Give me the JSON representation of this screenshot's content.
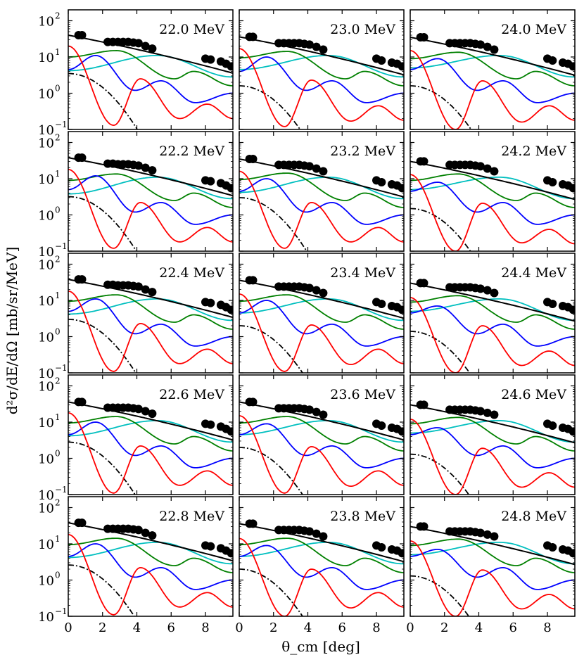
{
  "figure": {
    "ylabel": "d²σ/dE/dΩ [mb/sr/MeV]",
    "xlabel": "θ_cm [deg]"
  },
  "chart_data": {
    "type": "line",
    "layout": "5 rows × 3 columns, shared axes",
    "xlim": [
      0,
      9.6
    ],
    "ylim": [
      0.1,
      200
    ],
    "yscale": "log",
    "x_ticks": [
      0,
      2,
      4,
      6,
      8
    ],
    "x_tick_labels": [
      "0",
      "2",
      "4",
      "6",
      "8"
    ],
    "y_ticks": [
      0.1,
      1,
      10,
      100
    ],
    "y_tick_labels": [
      "10",
      "10",
      "10",
      "10"
    ],
    "y_tick_exponents": [
      "−1",
      "0",
      "1",
      "2"
    ],
    "grid": false,
    "series_styles": [
      {
        "key": "total",
        "color": "#000000",
        "dash": "solid"
      },
      {
        "key": "dipole",
        "color": "#ff0000",
        "dash": "solid"
      },
      {
        "key": "l2",
        "color": "#0000ff",
        "dash": "solid"
      },
      {
        "key": "l3",
        "color": "#008000",
        "dash": "solid"
      },
      {
        "key": "l4",
        "color": "#00bfbf",
        "dash": "solid"
      },
      {
        "key": "background",
        "color": "#000000",
        "dash": "dashdot"
      }
    ],
    "data_points_theta": [
      0.6,
      0.8,
      2.3,
      2.6,
      2.9,
      3.2,
      3.5,
      3.8,
      4.1,
      4.5,
      4.9,
      8.0,
      8.3,
      8.9,
      9.2,
      9.5
    ],
    "panels": [
      {
        "label": "22.0 MeV",
        "total": [
          40,
          40,
          26,
          26,
          26,
          26,
          26,
          25,
          24,
          20,
          17,
          9,
          8.5,
          7.5,
          6.5,
          5.5
        ],
        "dip": [
          20,
          0.13,
          2.5,
          0.2,
          0.5
        ],
        "l2": [
          4.5,
          11
        ],
        "l3": 10,
        "l4": 4.2,
        "bg": 3.5
      },
      {
        "label": "23.0 MeV",
        "total": [
          36,
          36,
          24,
          24,
          24,
          24,
          24,
          23,
          22,
          19,
          16,
          9,
          8,
          7,
          6.5,
          5.5
        ],
        "dip": [
          17,
          0.12,
          2.3,
          0.17,
          0.45
        ],
        "l2": [
          4.0,
          10
        ],
        "l3": 9.5,
        "l4": 4.5,
        "bg": 1.6
      },
      {
        "label": "24.0 MeV",
        "total": [
          35,
          35,
          24,
          24,
          24,
          24,
          24,
          23,
          22,
          19,
          16,
          9,
          8,
          7,
          6.5,
          5.5
        ],
        "dip": [
          15,
          0.1,
          2.2,
          0.16,
          0.45
        ],
        "l2": [
          4.5,
          9
        ],
        "l3": 9,
        "l4": 5,
        "bg": 1.6
      },
      {
        "label": "22.2 MeV",
        "total": [
          38,
          38,
          26,
          26,
          25,
          25,
          25,
          24,
          23,
          20,
          17,
          9,
          8.5,
          7.5,
          6.5,
          5.5
        ],
        "dip": [
          18,
          0.12,
          2.2,
          0.18,
          0.45
        ],
        "l2": [
          5,
          12
        ],
        "l3": 9,
        "l4": 3.8,
        "bg": 3.2
      },
      {
        "label": "23.2 MeV",
        "total": [
          35,
          35,
          24,
          24,
          24,
          24,
          24,
          23,
          22,
          19,
          16,
          9,
          8,
          7,
          6.5,
          5.5
        ],
        "dip": [
          16,
          0.12,
          2.2,
          0.18,
          0.45
        ],
        "l2": [
          4.5,
          10
        ],
        "l3": 9.5,
        "l4": 4.2,
        "bg": 3.0
      },
      {
        "label": "24.2 MeV",
        "total": [
          30,
          30,
          24,
          24,
          24,
          24,
          24,
          23,
          22,
          19,
          16,
          9,
          8,
          7,
          6.5,
          5.5
        ],
        "dip": [
          13,
          0.1,
          2.1,
          0.17,
          0.4
        ],
        "l2": [
          4.5,
          8
        ],
        "l3": 9,
        "l4": 5,
        "bg": 1.5
      },
      {
        "label": "22.4 MeV",
        "total": [
          38,
          38,
          27,
          27,
          26,
          26,
          26,
          25,
          24,
          20,
          17,
          9,
          8.5,
          7.5,
          6.5,
          5.5
        ],
        "dip": [
          18,
          0.11,
          2.3,
          0.18,
          0.45
        ],
        "l2": [
          5,
          11
        ],
        "l3": 9.5,
        "l4": 4.2,
        "bg": 3.0
      },
      {
        "label": "23.4 MeV",
        "total": [
          36,
          36,
          24,
          24,
          24,
          24,
          24,
          23,
          22,
          19,
          16,
          9,
          8,
          7,
          6.5,
          5.5
        ],
        "dip": [
          15,
          0.11,
          2.1,
          0.17,
          0.45
        ],
        "l2": [
          4.5,
          10
        ],
        "l3": 9.5,
        "l4": 4.5,
        "bg": 2.0
      },
      {
        "label": "24.4 MeV",
        "total": [
          30,
          30,
          23,
          23,
          23,
          23,
          23,
          22,
          21,
          19,
          16,
          9,
          8,
          7,
          6.5,
          5.5
        ],
        "dip": [
          12,
          0.1,
          2.0,
          0.16,
          0.4
        ],
        "l2": [
          4.5,
          7
        ],
        "l3": 9,
        "l4": 5,
        "bg": 1.4
      },
      {
        "label": "22.6 MeV",
        "total": [
          36,
          36,
          25,
          25,
          25,
          25,
          25,
          24,
          23,
          20,
          17,
          9,
          8.5,
          7.5,
          6.5,
          5.5
        ],
        "dip": [
          18,
          0.11,
          2.2,
          0.18,
          0.45
        ],
        "l2": [
          4.5,
          10
        ],
        "l3": 9.5,
        "l4": 4.2,
        "bg": 2.8
      },
      {
        "label": "23.6 MeV",
        "total": [
          36,
          36,
          24,
          24,
          24,
          24,
          24,
          23,
          22,
          19,
          16,
          9,
          8,
          7,
          6.5,
          5.5
        ],
        "dip": [
          15,
          0.11,
          2.1,
          0.17,
          0.45
        ],
        "l2": [
          4.5,
          9
        ],
        "l3": 9.5,
        "l4": 4.5,
        "bg": 2.0
      },
      {
        "label": "24.6 MeV",
        "total": [
          30,
          30,
          22,
          22,
          22,
          22,
          22,
          21,
          20,
          18,
          16,
          9,
          8,
          7,
          6.5,
          5.5
        ],
        "dip": [
          12,
          0.1,
          1.9,
          0.16,
          0.4
        ],
        "l2": [
          4.5,
          7
        ],
        "l3": 9,
        "l4": 5,
        "bg": 1.3
      },
      {
        "label": "22.8 MeV",
        "total": [
          38,
          38,
          26,
          26,
          26,
          26,
          26,
          25,
          24,
          20,
          17,
          9,
          8.5,
          7.5,
          6.5,
          5.5
        ],
        "dip": [
          18,
          0.11,
          2.2,
          0.18,
          0.45
        ],
        "l2": [
          4.5,
          10
        ],
        "l3": 9.5,
        "l4": 4.2,
        "bg": 2.6
      },
      {
        "label": "23.8 MeV",
        "total": [
          36,
          36,
          24,
          24,
          24,
          24,
          24,
          23,
          22,
          19,
          16,
          9,
          8,
          7,
          6.5,
          5.5
        ],
        "dip": [
          14,
          0.1,
          2.0,
          0.17,
          0.45
        ],
        "l2": [
          4.5,
          9
        ],
        "l3": 9.5,
        "l4": 4.5,
        "bg": 2.0
      },
      {
        "label": "24.8 MeV",
        "total": [
          30,
          30,
          22,
          22,
          22,
          22,
          22,
          21,
          20,
          18,
          16,
          9,
          8,
          7,
          6.5,
          5.5
        ],
        "dip": [
          12,
          0.1,
          1.9,
          0.16,
          0.4
        ],
        "l2": [
          4.5,
          7
        ],
        "l3": 9,
        "l4": 5,
        "bg": 1.3
      }
    ]
  }
}
